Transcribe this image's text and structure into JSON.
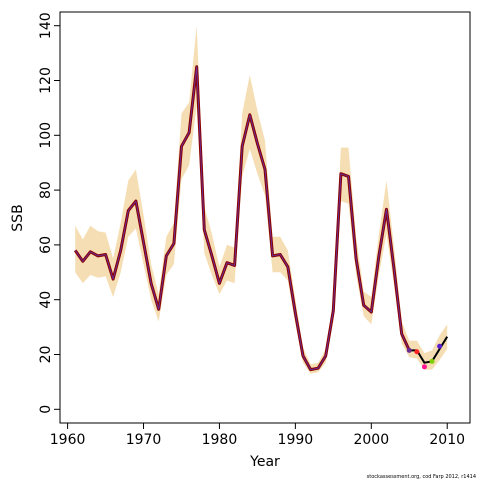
{
  "chart_data": {
    "type": "line",
    "xlabel": "Year",
    "ylabel": "SSB",
    "footnote": "stockassessment.org, cod Farp 2012, r1414",
    "xlim": [
      1959,
      2013
    ],
    "ylim": [
      -5,
      145
    ],
    "x_ticks": [
      1960,
      1970,
      1980,
      1990,
      2000,
      2010
    ],
    "y_ticks": [
      0,
      20,
      40,
      60,
      80,
      100,
      120,
      140
    ],
    "grid": false,
    "legend": "none",
    "colors": {
      "band": "#f5deb3",
      "estimate": "#8b0000",
      "retro": "#6a2c91",
      "forecast": "#000000"
    },
    "years": [
      1961,
      1962,
      1963,
      1964,
      1965,
      1966,
      1967,
      1968,
      1969,
      1970,
      1971,
      1972,
      1973,
      1974,
      1975,
      1976,
      1977,
      1978,
      1979,
      1980,
      1981,
      1982,
      1983,
      1984,
      1985,
      1986,
      1987,
      1988,
      1989,
      1990,
      1991,
      1992,
      1993,
      1994,
      1995,
      1996,
      1997,
      1998,
      1999,
      2000,
      2001,
      2002,
      2003,
      2004,
      2005,
      2006,
      2007,
      2008,
      2009,
      2010
    ],
    "series": [
      {
        "values": [
          58,
          54,
          57.5,
          56,
          56.5,
          47.5,
          58,
          72.5,
          76,
          61,
          46,
          36.5,
          56,
          60.5,
          96,
          101,
          125,
          65.5,
          56,
          46,
          53.5,
          52.5,
          96,
          107.5,
          97,
          87.5,
          56,
          56.5,
          52,
          35,
          19.5,
          14.5,
          15,
          19.5,
          36,
          86,
          85,
          55,
          38,
          35.5,
          56,
          73,
          51,
          27.5,
          21.5,
          21.5,
          17,
          17.5,
          22,
          26.5
        ],
        "lower": [
          50,
          46,
          49,
          48,
          48.5,
          41,
          50,
          63,
          66,
          53,
          40,
          32,
          49,
          53,
          84,
          89,
          111,
          57,
          49,
          42,
          47,
          46,
          85,
          95,
          86,
          78,
          50,
          50,
          47,
          31,
          17,
          13,
          13.5,
          17,
          32,
          76,
          75,
          49,
          34,
          31,
          49,
          64,
          45,
          24,
          19,
          18.5,
          14.5,
          14.5,
          18,
          22
        ],
        "upper": [
          67,
          62,
          67,
          65,
          64.5,
          55,
          68,
          83.5,
          87.5,
          71,
          53,
          42,
          63,
          68,
          108,
          112,
          140,
          74,
          64,
          52,
          60,
          59,
          108,
          122,
          109,
          98,
          63,
          63,
          58,
          40,
          22.5,
          16.5,
          17,
          22,
          40,
          95.5,
          95.5,
          63,
          43,
          41,
          64,
          83.5,
          59,
          32,
          25,
          25,
          20.5,
          21.5,
          27,
          31
        ]
      }
    ],
    "retro_points": [
      {
        "year": 2005,
        "value": 21.5,
        "color": "#6a2c91"
      },
      {
        "year": 2006,
        "value": 21,
        "color": "#ff2222"
      },
      {
        "year": 2007,
        "value": 15.5,
        "color": "#ff1493"
      },
      {
        "year": 2008,
        "value": 17.5,
        "color": "#7fd000"
      },
      {
        "year": 2009,
        "value": 23,
        "color": "#5a1fd0"
      }
    ]
  }
}
